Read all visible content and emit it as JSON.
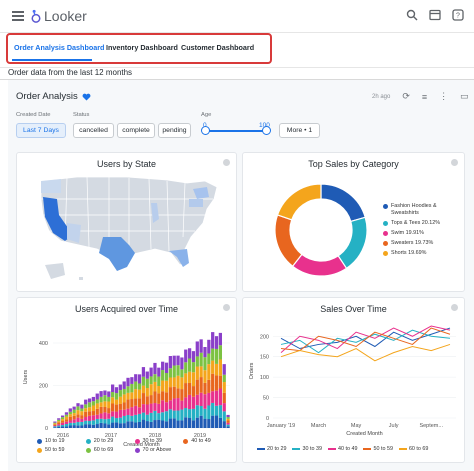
{
  "app": {
    "name": "Looker"
  },
  "topbar": {
    "icons": [
      "search-icon",
      "browse-icon",
      "help-icon"
    ]
  },
  "tabs": [
    {
      "label": "Order Analysis Dashboard",
      "active": true
    },
    {
      "label": "Inventory Dashboard",
      "active": false
    },
    {
      "label": "Customer Dashboard",
      "active": false
    }
  ],
  "subtitle": "Order data from the last 12 months",
  "dashboard": {
    "title": "Order Analysis",
    "age": "2h ago"
  },
  "filters": {
    "created_date_label": "Created Date",
    "created_date_value": "Last 7 Days",
    "status_label": "Status",
    "status_options": [
      "cancelled",
      "complete",
      "pending"
    ],
    "age_label": "Age",
    "age_min": "0",
    "age_max": "100",
    "more_label": "More • 1"
  },
  "colors": {
    "accent": "#1a73e8",
    "highlight": "#d83a3a"
  },
  "tiles": {
    "users_by_state": {
      "title": "Users by State"
    },
    "top_sales": {
      "title": "Top Sales by Category",
      "legend": [
        {
          "name": "Fashion Hoodies & Sweatshirts",
          "pct": "",
          "color": "#1f5bb5"
        },
        {
          "name": "Tops & Tees",
          "pct": "20.12%",
          "color": "#25b1c4"
        },
        {
          "name": "Swim",
          "pct": "19.91%",
          "color": "#e8318d"
        },
        {
          "name": "Sweaters",
          "pct": "19.73%",
          "color": "#e8661f"
        },
        {
          "name": "Shorts",
          "pct": "19.69%",
          "color": "#f4a51c"
        }
      ]
    },
    "users_acquired": {
      "title": "Users Acquired over Time",
      "ylabel": "Users",
      "xlabel": "Created Month",
      "yticks": [
        "400",
        "200",
        "0"
      ],
      "xticks": [
        "2016",
        "2017",
        "2018",
        "2019"
      ],
      "legend": [
        {
          "name": "10 to 19",
          "color": "#1f5bb5"
        },
        {
          "name": "20 to 29",
          "color": "#25b1c4"
        },
        {
          "name": "30 to 39",
          "color": "#e8318d"
        },
        {
          "name": "40 to 49",
          "color": "#e8661f"
        },
        {
          "name": "50 to 59",
          "color": "#f4a51c"
        },
        {
          "name": "60 to 69",
          "color": "#7cc242"
        },
        {
          "name": "70 or Above",
          "color": "#8a3fc9"
        }
      ]
    },
    "sales_over_time": {
      "title": "Sales Over Time",
      "ylabel": "Orders",
      "xlabel": "Created Month",
      "yticks": [
        "200",
        "150",
        "100",
        "50",
        "0"
      ],
      "xticks": [
        "January '19",
        "March",
        "May",
        "July",
        "Septem..."
      ],
      "legend": [
        {
          "name": "20 to 29",
          "color": "#1f5bb5"
        },
        {
          "name": "30 to 39",
          "color": "#25b1c4"
        },
        {
          "name": "40 to 49",
          "color": "#e8318d"
        },
        {
          "name": "50 to 59",
          "color": "#e8661f"
        },
        {
          "name": "60 to 69",
          "color": "#f4a51c"
        }
      ]
    }
  },
  "chart_data": [
    {
      "type": "pie",
      "title": "Top Sales by Category",
      "categories": [
        "Fashion Hoodies & Sweatshirts",
        "Tops & Tees",
        "Swim",
        "Sweaters",
        "Shorts"
      ],
      "values": [
        20.55,
        20.12,
        19.91,
        19.73,
        19.69
      ]
    },
    {
      "type": "bar",
      "title": "Users Acquired over Time",
      "xlabel": "Created Month",
      "ylabel": "Users",
      "ylim": [
        0,
        480
      ],
      "series_names": [
        "10 to 19",
        "20 to 29",
        "30 to 39",
        "40 to 49",
        "50 to 59",
        "60 to 69",
        "70 or Above"
      ],
      "totals": [
        30,
        45,
        60,
        75,
        90,
        100,
        120,
        110,
        130,
        140,
        150,
        160,
        170,
        180,
        175,
        200,
        190,
        210,
        220,
        230,
        240,
        260,
        250,
        280,
        270,
        290,
        300,
        280,
        320,
        310,
        330,
        340,
        350,
        330,
        360,
        380,
        370,
        400,
        410,
        390,
        420,
        440,
        430,
        460,
        300,
        60
      ]
    },
    {
      "type": "line",
      "title": "Sales Over Time",
      "xlabel": "Created Month",
      "ylabel": "Orders",
      "ylim": [
        0,
        230
      ],
      "x": [
        "January '19",
        "February",
        "March",
        "April",
        "May",
        "June",
        "July",
        "August",
        "September",
        "October"
      ],
      "series": [
        {
          "name": "20 to 29",
          "values": [
            195,
            170,
            180,
            185,
            200,
            175,
            210,
            190,
            205,
            220
          ]
        },
        {
          "name": "30 to 39",
          "values": [
            180,
            190,
            160,
            195,
            185,
            205,
            190,
            215,
            200,
            195
          ]
        },
        {
          "name": "40 to 49",
          "values": [
            160,
            200,
            190,
            170,
            210,
            195,
            220,
            200,
            225,
            215
          ]
        },
        {
          "name": "50 to 59",
          "values": [
            170,
            165,
            200,
            190,
            175,
            210,
            195,
            180,
            220,
            205
          ]
        },
        {
          "name": "60 to 69",
          "values": [
            150,
            165,
            155,
            150,
            170,
            140,
            160,
            175,
            165,
            180
          ]
        }
      ]
    }
  ]
}
